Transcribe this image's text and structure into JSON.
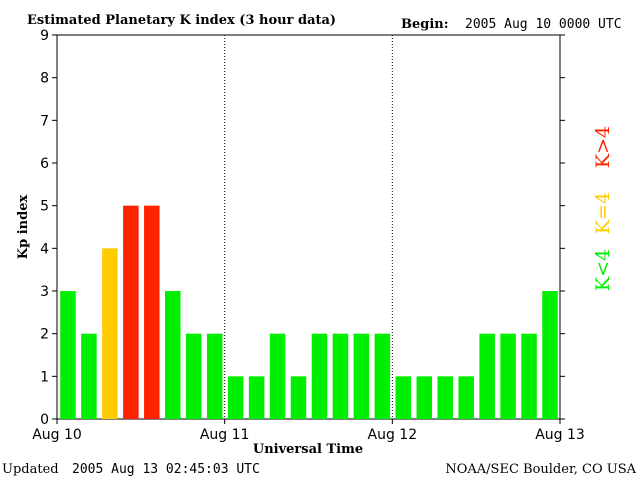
{
  "header": {
    "title": "Estimated Planetary K index (3 hour data)",
    "begin_label": "Begin:",
    "begin_value": "2005 Aug 10 0000 UTC"
  },
  "footer": {
    "updated_label": "Updated",
    "updated_value": "2005 Aug 13 02:45:03 UTC",
    "source": "NOAA/SEC Boulder, CO USA"
  },
  "legend": [
    {
      "label": "K<4",
      "color": "#00ee00"
    },
    {
      "label": "K=4",
      "color": "#ffcc00"
    },
    {
      "label": "K>4",
      "color": "#ff2200"
    }
  ],
  "chart_data": {
    "type": "bar",
    "title": "Estimated Planetary K index (3 hour data)",
    "xlabel": "Universal Time",
    "ylabel": "Kp index",
    "ylim": [
      0,
      9
    ],
    "yticks": [
      0,
      1,
      2,
      3,
      4,
      5,
      6,
      7,
      8,
      9
    ],
    "x_tick_labels": [
      "Aug 10",
      "Aug 11",
      "Aug 12",
      "Aug 13"
    ],
    "day_dividers": "dotted",
    "values": [
      3,
      2,
      4,
      5,
      5,
      3,
      2,
      2,
      1,
      1,
      2,
      1,
      2,
      2,
      2,
      2,
      1,
      1,
      1,
      1,
      2,
      2,
      2,
      3
    ],
    "colors": {
      "below_4": "#00ee00",
      "equal_4": "#ffcc00",
      "above_4": "#ff2200"
    }
  }
}
